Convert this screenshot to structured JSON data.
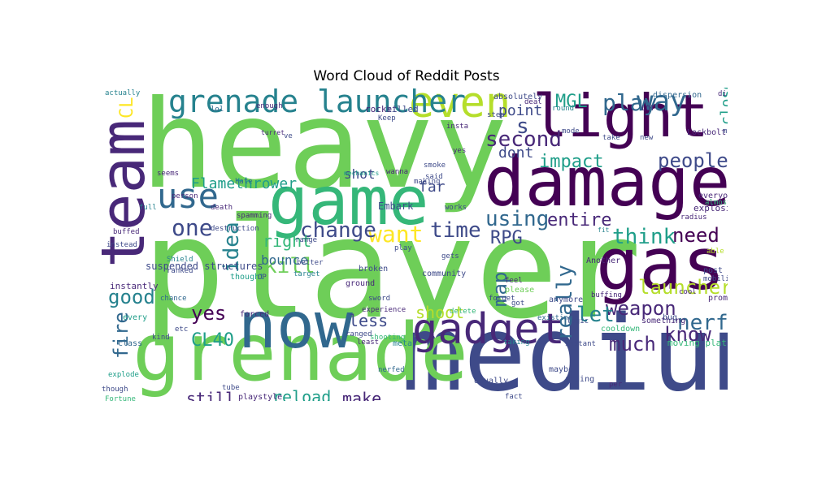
{
  "title": "Word Cloud of Reddit Posts",
  "palette": {
    "dark_purple": "#440154",
    "purple": "#482878",
    "indigo": "#3e4a89",
    "blue": "#31688e",
    "teal": "#26828e",
    "green_teal": "#1f9e89",
    "green": "#35b779",
    "lime": "#6ece58",
    "yellow_green": "#b5de2b",
    "yellow": "#fde725"
  },
  "words": [
    {
      "text": "heavy",
      "color": "lime"
    },
    {
      "text": "player",
      "color": "lime"
    },
    {
      "text": "medium",
      "color": "indigo"
    },
    {
      "text": "grenade",
      "color": "lime"
    },
    {
      "text": "damage",
      "color": "dark_purple"
    },
    {
      "text": "light",
      "color": "dark_purple"
    },
    {
      "text": "team",
      "color": "purple"
    },
    {
      "text": "game",
      "color": "green"
    },
    {
      "text": "gas",
      "color": "dark_purple"
    },
    {
      "text": "now",
      "color": "blue"
    },
    {
      "text": "even",
      "color": "yellow_green"
    },
    {
      "text": "gadget",
      "color": "purple"
    },
    {
      "text": "grenade launcher",
      "color": "teal"
    },
    {
      "text": "use",
      "color": "blue"
    },
    {
      "text": "way",
      "color": "blue"
    },
    {
      "text": "play",
      "color": "blue"
    },
    {
      "text": "MGL",
      "color": "green_teal"
    },
    {
      "text": "s",
      "color": "indigo"
    },
    {
      "text": "second",
      "color": "purple"
    },
    {
      "text": "people",
      "color": "indigo"
    },
    {
      "text": "impact",
      "color": "green_teal"
    },
    {
      "text": "point",
      "color": "indigo"
    },
    {
      "text": "dont",
      "color": "indigo"
    },
    {
      "text": "using",
      "color": "blue"
    },
    {
      "text": "entire",
      "color": "purple"
    },
    {
      "text": "think",
      "color": "green_teal"
    },
    {
      "text": "need",
      "color": "dark_purple"
    },
    {
      "text": "launcher",
      "color": "yellow_green"
    },
    {
      "text": "weapon",
      "color": "purple"
    },
    {
      "text": "nerf",
      "color": "blue"
    },
    {
      "text": "know",
      "color": "purple"
    },
    {
      "text": "much",
      "color": "purple"
    },
    {
      "text": "let",
      "color": "teal"
    },
    {
      "text": "really",
      "color": "blue"
    },
    {
      "text": "map",
      "color": "blue"
    },
    {
      "text": "want",
      "color": "yellow"
    },
    {
      "text": "time",
      "color": "indigo"
    },
    {
      "text": "RPG",
      "color": "indigo"
    },
    {
      "text": "change",
      "color": "indigo"
    },
    {
      "text": "one",
      "color": "indigo"
    },
    {
      "text": "kill",
      "color": "lime"
    },
    {
      "text": "idea",
      "color": "teal"
    },
    {
      "text": "right",
      "color": "green"
    },
    {
      "text": "good",
      "color": "teal"
    },
    {
      "text": "yes",
      "color": "dark_purple"
    },
    {
      "text": "less",
      "color": "indigo"
    },
    {
      "text": "fire",
      "color": "blue"
    },
    {
      "text": "CL40",
      "color": "green_teal"
    },
    {
      "text": "shoot",
      "color": "yellow_green"
    },
    {
      "text": "still",
      "color": "purple"
    },
    {
      "text": "reload",
      "color": "green_teal"
    },
    {
      "text": "make",
      "color": "purple"
    },
    {
      "text": "CL",
      "color": "yellow"
    },
    {
      "text": "close",
      "color": "green_teal"
    },
    {
      "text": "Flamethrower",
      "color": "green_teal"
    },
    {
      "text": "bounce",
      "color": "blue"
    },
    {
      "text": "shot",
      "color": "indigo"
    },
    {
      "text": "far",
      "color": "indigo"
    },
    {
      "text": "suspended structures",
      "color": "indigo"
    },
    {
      "text": "Embark",
      "color": "indigo"
    },
    {
      "text": "explosive",
      "color": "purple"
    },
    {
      "text": "mobility",
      "color": "indigo"
    },
    {
      "text": "instantly",
      "color": "purple"
    },
    {
      "text": "moving platforms",
      "color": "green"
    },
    {
      "text": "cooldown",
      "color": "green"
    },
    {
      "text": "Fortune",
      "color": "green"
    },
    {
      "text": "playstyle",
      "color": "purple"
    },
    {
      "text": "Usually",
      "color": "indigo"
    },
    {
      "text": "adding",
      "color": "indigo"
    },
    {
      "text": "meta",
      "color": "teal"
    },
    {
      "text": "nerfed",
      "color": "blue"
    },
    {
      "text": "experience",
      "color": "purple"
    },
    {
      "text": "instant",
      "color": "indigo"
    },
    {
      "text": "shooting",
      "color": "green"
    },
    {
      "text": "forced",
      "color": "purple"
    },
    {
      "text": "thought",
      "color": "green_teal"
    },
    {
      "text": "every",
      "color": "green_teal"
    },
    {
      "text": "class",
      "color": "blue"
    },
    {
      "text": "maybe",
      "color": "indigo"
    },
    {
      "text": "anymore",
      "color": "indigo"
    },
    {
      "text": "please",
      "color": "lime"
    },
    {
      "text": "promote",
      "color": "purple"
    },
    {
      "text": "something",
      "color": "purple"
    },
    {
      "text": "bug",
      "color": "indigo"
    },
    {
      "text": "Another",
      "color": "purple"
    },
    {
      "text": "post",
      "color": "indigo"
    },
    {
      "text": "everyone",
      "color": "purple"
    },
    {
      "text": "ground",
      "color": "purple"
    },
    {
      "text": "broken",
      "color": "indigo"
    },
    {
      "text": "community",
      "color": "indigo"
    },
    {
      "text": "mode",
      "color": "indigo"
    },
    {
      "text": "take",
      "color": "indigo"
    },
    {
      "text": "new",
      "color": "indigo"
    },
    {
      "text": "Keep",
      "color": "indigo"
    },
    {
      "text": "rocket",
      "color": "purple"
    },
    {
      "text": "killed",
      "color": "indigo"
    },
    {
      "text": "absolutely",
      "color": "indigo"
    },
    {
      "text": "round",
      "color": "teal"
    },
    {
      "text": "dispersion",
      "color": "blue"
    },
    {
      "text": "Lockbolt",
      "color": "purple"
    },
    {
      "text": "LOT",
      "color": "purple"
    },
    {
      "text": "death",
      "color": "purple"
    },
    {
      "text": "full",
      "color": "teal"
    },
    {
      "text": "person",
      "color": "purple"
    },
    {
      "text": "seems",
      "color": "purple"
    },
    {
      "text": "spamming",
      "color": "purple"
    },
    {
      "text": "hate",
      "color": "blue"
    },
    {
      "text": "lol",
      "color": "blue"
    },
    {
      "text": "enough",
      "color": "purple"
    },
    {
      "text": "destruction",
      "color": "indigo"
    },
    {
      "text": "range",
      "color": "indigo"
    },
    {
      "text": "ranked",
      "color": "indigo"
    },
    {
      "text": "instead",
      "color": "indigo"
    },
    {
      "text": "chance",
      "color": "blue"
    },
    {
      "text": "kind",
      "color": "indigo"
    },
    {
      "text": "explode",
      "color": "green_teal"
    },
    {
      "text": "though",
      "color": "indigo"
    },
    {
      "text": "taking",
      "color": "teal"
    },
    {
      "text": "logic",
      "color": "indigo"
    },
    {
      "text": "forget",
      "color": "indigo"
    },
    {
      "text": "got",
      "color": "indigo"
    },
    {
      "text": "delete",
      "color": "green"
    },
    {
      "text": "wanna",
      "color": "purple"
    },
    {
      "text": "said",
      "color": "indigo"
    },
    {
      "text": "smoke",
      "color": "indigo"
    },
    {
      "text": "making",
      "color": "indigo"
    },
    {
      "text": "works",
      "color": "indigo"
    },
    {
      "text": "mechanics",
      "color": "green_teal"
    },
    {
      "text": "turret",
      "color": "purple"
    },
    {
      "text": "ve",
      "color": "indigo"
    },
    {
      "text": "actually",
      "color": "teal"
    },
    {
      "text": "target",
      "color": "teal"
    },
    {
      "text": "better",
      "color": "indigo"
    },
    {
      "text": "OP",
      "color": "indigo"
    },
    {
      "text": "buffed",
      "color": "purple"
    },
    {
      "text": "Shield",
      "color": "teal"
    },
    {
      "text": "existing",
      "color": "blue"
    },
    {
      "text": "ranged",
      "color": "indigo"
    },
    {
      "text": "least",
      "color": "purple"
    },
    {
      "text": "fit",
      "color": "teal"
    },
    {
      "text": "feel",
      "color": "purple"
    },
    {
      "text": "cool",
      "color": "purple"
    },
    {
      "text": "per",
      "color": "purple"
    },
    {
      "text": "fact",
      "color": "indigo"
    },
    {
      "text": "tube",
      "color": "indigo"
    },
    {
      "text": "etc",
      "color": "indigo"
    },
    {
      "text": "direct",
      "color": "purple"
    },
    {
      "text": "able",
      "color": "yellow_green"
    },
    {
      "text": "almost",
      "color": "green"
    },
    {
      "text": "radius",
      "color": "purple"
    },
    {
      "text": "buffing",
      "color": "purple"
    },
    {
      "text": "insta",
      "color": "purple"
    },
    {
      "text": "step",
      "color": "indigo"
    },
    {
      "text": "yes",
      "color": "purple"
    },
    {
      "text": "deal",
      "color": "purple"
    },
    {
      "text": "play",
      "color": "indigo"
    },
    {
      "text": "gets",
      "color": "indigo"
    },
    {
      "text": "sword",
      "color": "indigo"
    },
    {
      "text": "melee",
      "color": "indigo"
    },
    {
      "text": "ok",
      "color": "indigo"
    }
  ]
}
